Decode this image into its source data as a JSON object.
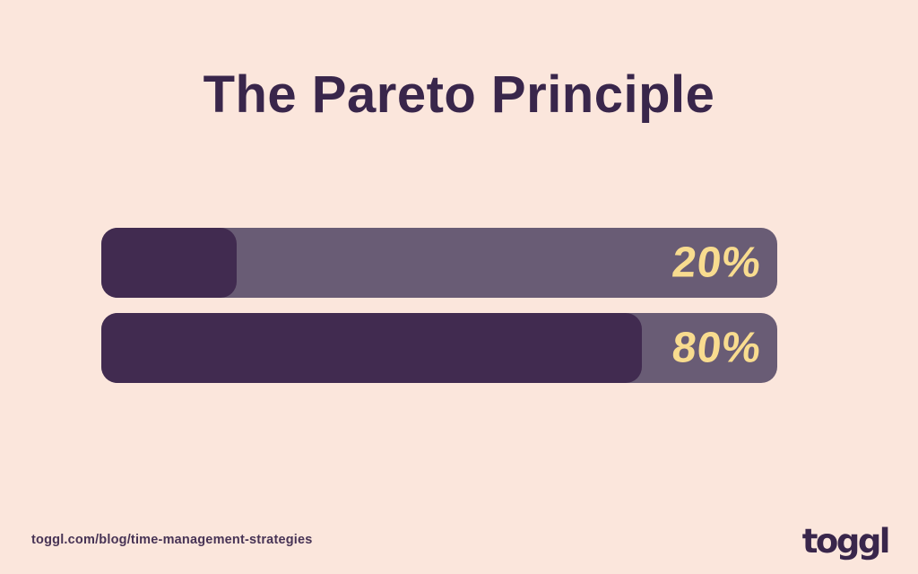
{
  "title": "The Pareto Principle",
  "chart_data": {
    "type": "bar",
    "orientation": "horizontal",
    "values": [
      20,
      80
    ],
    "labels": [
      "20%",
      "80%"
    ],
    "categories": [
      "",
      ""
    ],
    "xlim": [
      0,
      100
    ],
    "title": "The Pareto Principle",
    "grid": false,
    "legend": false
  },
  "footer": {
    "url": "toggl.com/blog/time-management-strategies",
    "logo": "toggl"
  },
  "colors": {
    "background": "#FBE6DC",
    "title_text": "#39264B",
    "bar_track": "#695C75",
    "bar_fill": "#412B50",
    "percent_text": "#F8DC8F",
    "url_text": "#473355"
  }
}
